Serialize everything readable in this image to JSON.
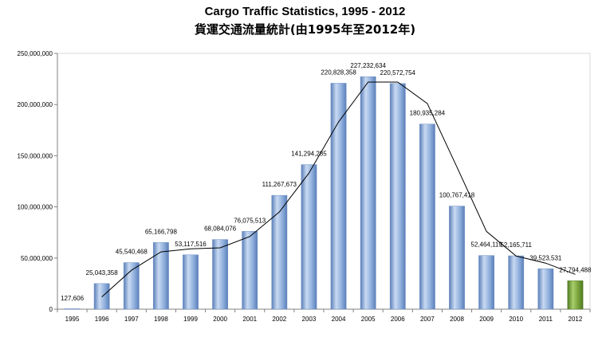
{
  "chart_data": {
    "type": "bar",
    "title": "Cargo Traffic Statistics, 1995 -  2012",
    "subtitle": "貨運交通流量統計(由1995年至2012年)",
    "categories": [
      "1995",
      "1996",
      "1997",
      "1998",
      "1999",
      "2000",
      "2001",
      "2002",
      "2003",
      "2004",
      "2005",
      "2006",
      "2007",
      "2008",
      "2009",
      "2010",
      "2011",
      "2012"
    ],
    "values": [
      127606,
      25043358,
      45540468,
      65166798,
      53117516,
      68084076,
      76075513,
      111267673,
      141294285,
      220828358,
      227232634,
      220572754,
      180935284,
      100767418,
      52464119,
      52165711,
      39523531,
      27794488
    ],
    "value_labels": [
      "127,606",
      "25,043,358",
      "45,540,468",
      "65,166,798",
      "53,117,516",
      "68,084,076",
      "76,075,513",
      "111,267,673",
      "141,294,285",
      "220,828,358",
      "227,232,634",
      "220,572,754",
      "180,935,284",
      "100,767,418",
      "52,464,119",
      "52,165,711",
      "39,523,531",
      "27,794,488"
    ],
    "trend_line": [
      null,
      12000000,
      38000000,
      56000000,
      59000000,
      60000000,
      71000000,
      95000000,
      133000000,
      183000000,
      222000000,
      222000000,
      201000000,
      139000000,
      76000000,
      52000000,
      45000000,
      34000000
    ],
    "ylim": [
      0,
      250000000
    ],
    "yticks": [
      0,
      50000000,
      100000000,
      150000000,
      200000000,
      250000000
    ],
    "ytick_labels": [
      "0",
      "50,000,000",
      "100,000,000",
      "150,000,000",
      "200,000,000",
      "250,000,000"
    ],
    "xlabel": "",
    "ylabel": "",
    "grid": false,
    "colors": {
      "bar": "#8eaedc",
      "bar_dark": "#5b7fb8",
      "bar_light": "#c9daf2",
      "highlight_bar": "#76a03a",
      "highlight_bar_light": "#a9cf6a",
      "trend": "#000000",
      "axis": "#808080"
    }
  }
}
